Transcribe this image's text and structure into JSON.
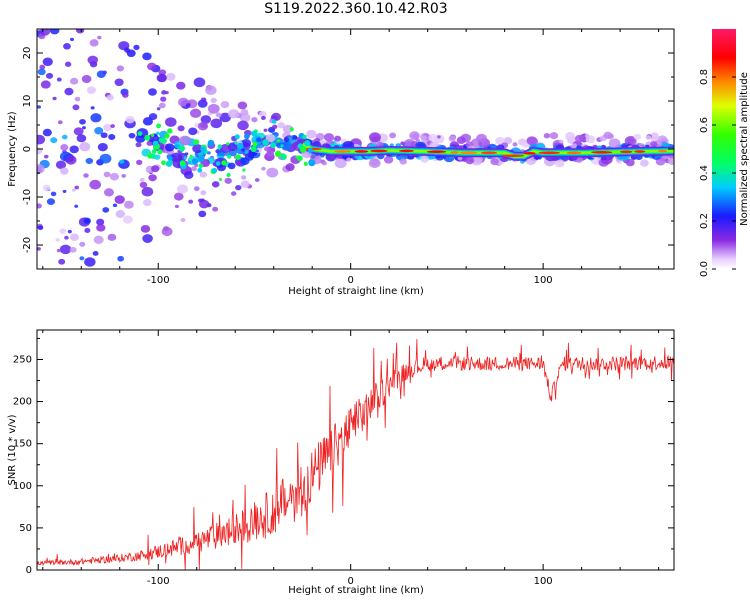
{
  "title": "S119.2022.360.10.42.R03",
  "colors": {
    "snr_line": "#ee2222",
    "axes": "#000000"
  },
  "chart_data": [
    {
      "type": "heatmap",
      "xlabel": "Height of straight line (km)",
      "ylabel": "Frequency (Hz)",
      "xlim": [
        -163,
        168
      ],
      "ylim": [
        -25,
        25
      ],
      "xticks": [
        -100,
        0,
        100
      ],
      "yticks": [
        -20,
        -10,
        0,
        10,
        20
      ],
      "colorbar": {
        "label": "Normalized spectral amplitude",
        "range": [
          0,
          1
        ],
        "ticks": [
          "0.0",
          "0.2",
          "0.4",
          "0.6",
          "0.8"
        ],
        "colormap": "rainbow (white-violet-blue-cyan-green-yellow-red-magenta)"
      },
      "ridge": {
        "x": [
          -163,
          -140,
          -120,
          -100,
          -90,
          -80,
          -70,
          -60,
          -50,
          -40,
          -30,
          -25,
          -20,
          -10,
          0,
          10,
          20,
          40,
          60,
          80,
          85,
          90,
          95,
          100,
          120,
          140,
          168
        ],
        "frequency": [
          0,
          0,
          0,
          1,
          0,
          -1,
          -3,
          -1,
          0,
          3,
          1,
          1,
          0,
          -0.5,
          -0.5,
          -0.5,
          -0.3,
          -0.5,
          -0.8,
          -0.8,
          -1.5,
          -1.5,
          -0.5,
          -0.8,
          -0.8,
          -0.6,
          -0.4
        ]
      }
    },
    {
      "type": "line",
      "xlabel": "Height of straight line (km)",
      "ylabel": "SNR (10 * v/v)",
      "xlim": [
        -163,
        168
      ],
      "ylim": [
        0,
        285
      ],
      "xticks": [
        -100,
        0,
        100
      ],
      "yticks": [
        0,
        50,
        100,
        150,
        200,
        250
      ],
      "series": [
        {
          "x": [
            -163,
            -150,
            -140,
            -130,
            -120,
            -110,
            -100,
            -90,
            -80,
            -70,
            -60,
            -50,
            -40,
            -30,
            -20,
            -10,
            0,
            10,
            20,
            30,
            40,
            50,
            60,
            80,
            100,
            104,
            110,
            130,
            150,
            168
          ],
          "values": [
            8,
            9,
            10,
            12,
            14,
            17,
            22,
            27,
            33,
            40,
            48,
            58,
            70,
            88,
            112,
            140,
            168,
            195,
            220,
            238,
            245,
            246,
            245,
            245,
            245,
            205,
            245,
            245,
            246,
            247
          ],
          "noise_amplitude": [
            4,
            5,
            6,
            7,
            8,
            10,
            14,
            18,
            22,
            27,
            32,
            40,
            48,
            55,
            55,
            50,
            45,
            35,
            25,
            18,
            15,
            14,
            14,
            14,
            14,
            14,
            14,
            14,
            15,
            15
          ]
        }
      ]
    }
  ]
}
